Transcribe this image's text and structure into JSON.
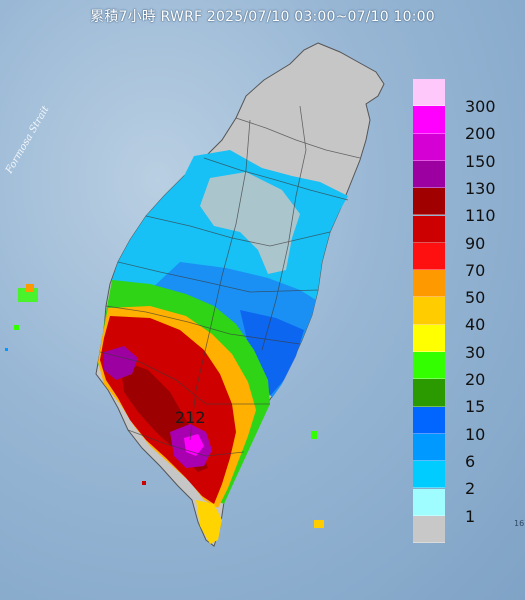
{
  "title": "累積7小時 RWRF 2025/07/10 03:00~07/10 10:00",
  "sea_label": "Formosa Strait",
  "peak_value": "212",
  "edge_text": "16",
  "legend": [
    {
      "label": "300",
      "color": "#ffc8fa"
    },
    {
      "label": "200",
      "color": "#ff00ff"
    },
    {
      "label": "150",
      "color": "#d400d4"
    },
    {
      "label": "130",
      "color": "#9c00a0"
    },
    {
      "label": "110",
      "color": "#a00000"
    },
    {
      "label": "90",
      "color": "#cc0000"
    },
    {
      "label": "70",
      "color": "#ff1010"
    },
    {
      "label": "50",
      "color": "#ff9900"
    },
    {
      "label": "40",
      "color": "#ffcc00"
    },
    {
      "label": "30",
      "color": "#ffff00"
    },
    {
      "label": "20",
      "color": "#33ff00"
    },
    {
      "label": "15",
      "color": "#2b9a00"
    },
    {
      "label": "10",
      "color": "#0066ff"
    },
    {
      "label": "6",
      "color": "#0099ff"
    },
    {
      "label": "2",
      "color": "#00ccff"
    },
    {
      "label": "1",
      "color": "#9ffcff"
    },
    {
      "label": "",
      "color": "#c8c8c8"
    }
  ]
}
